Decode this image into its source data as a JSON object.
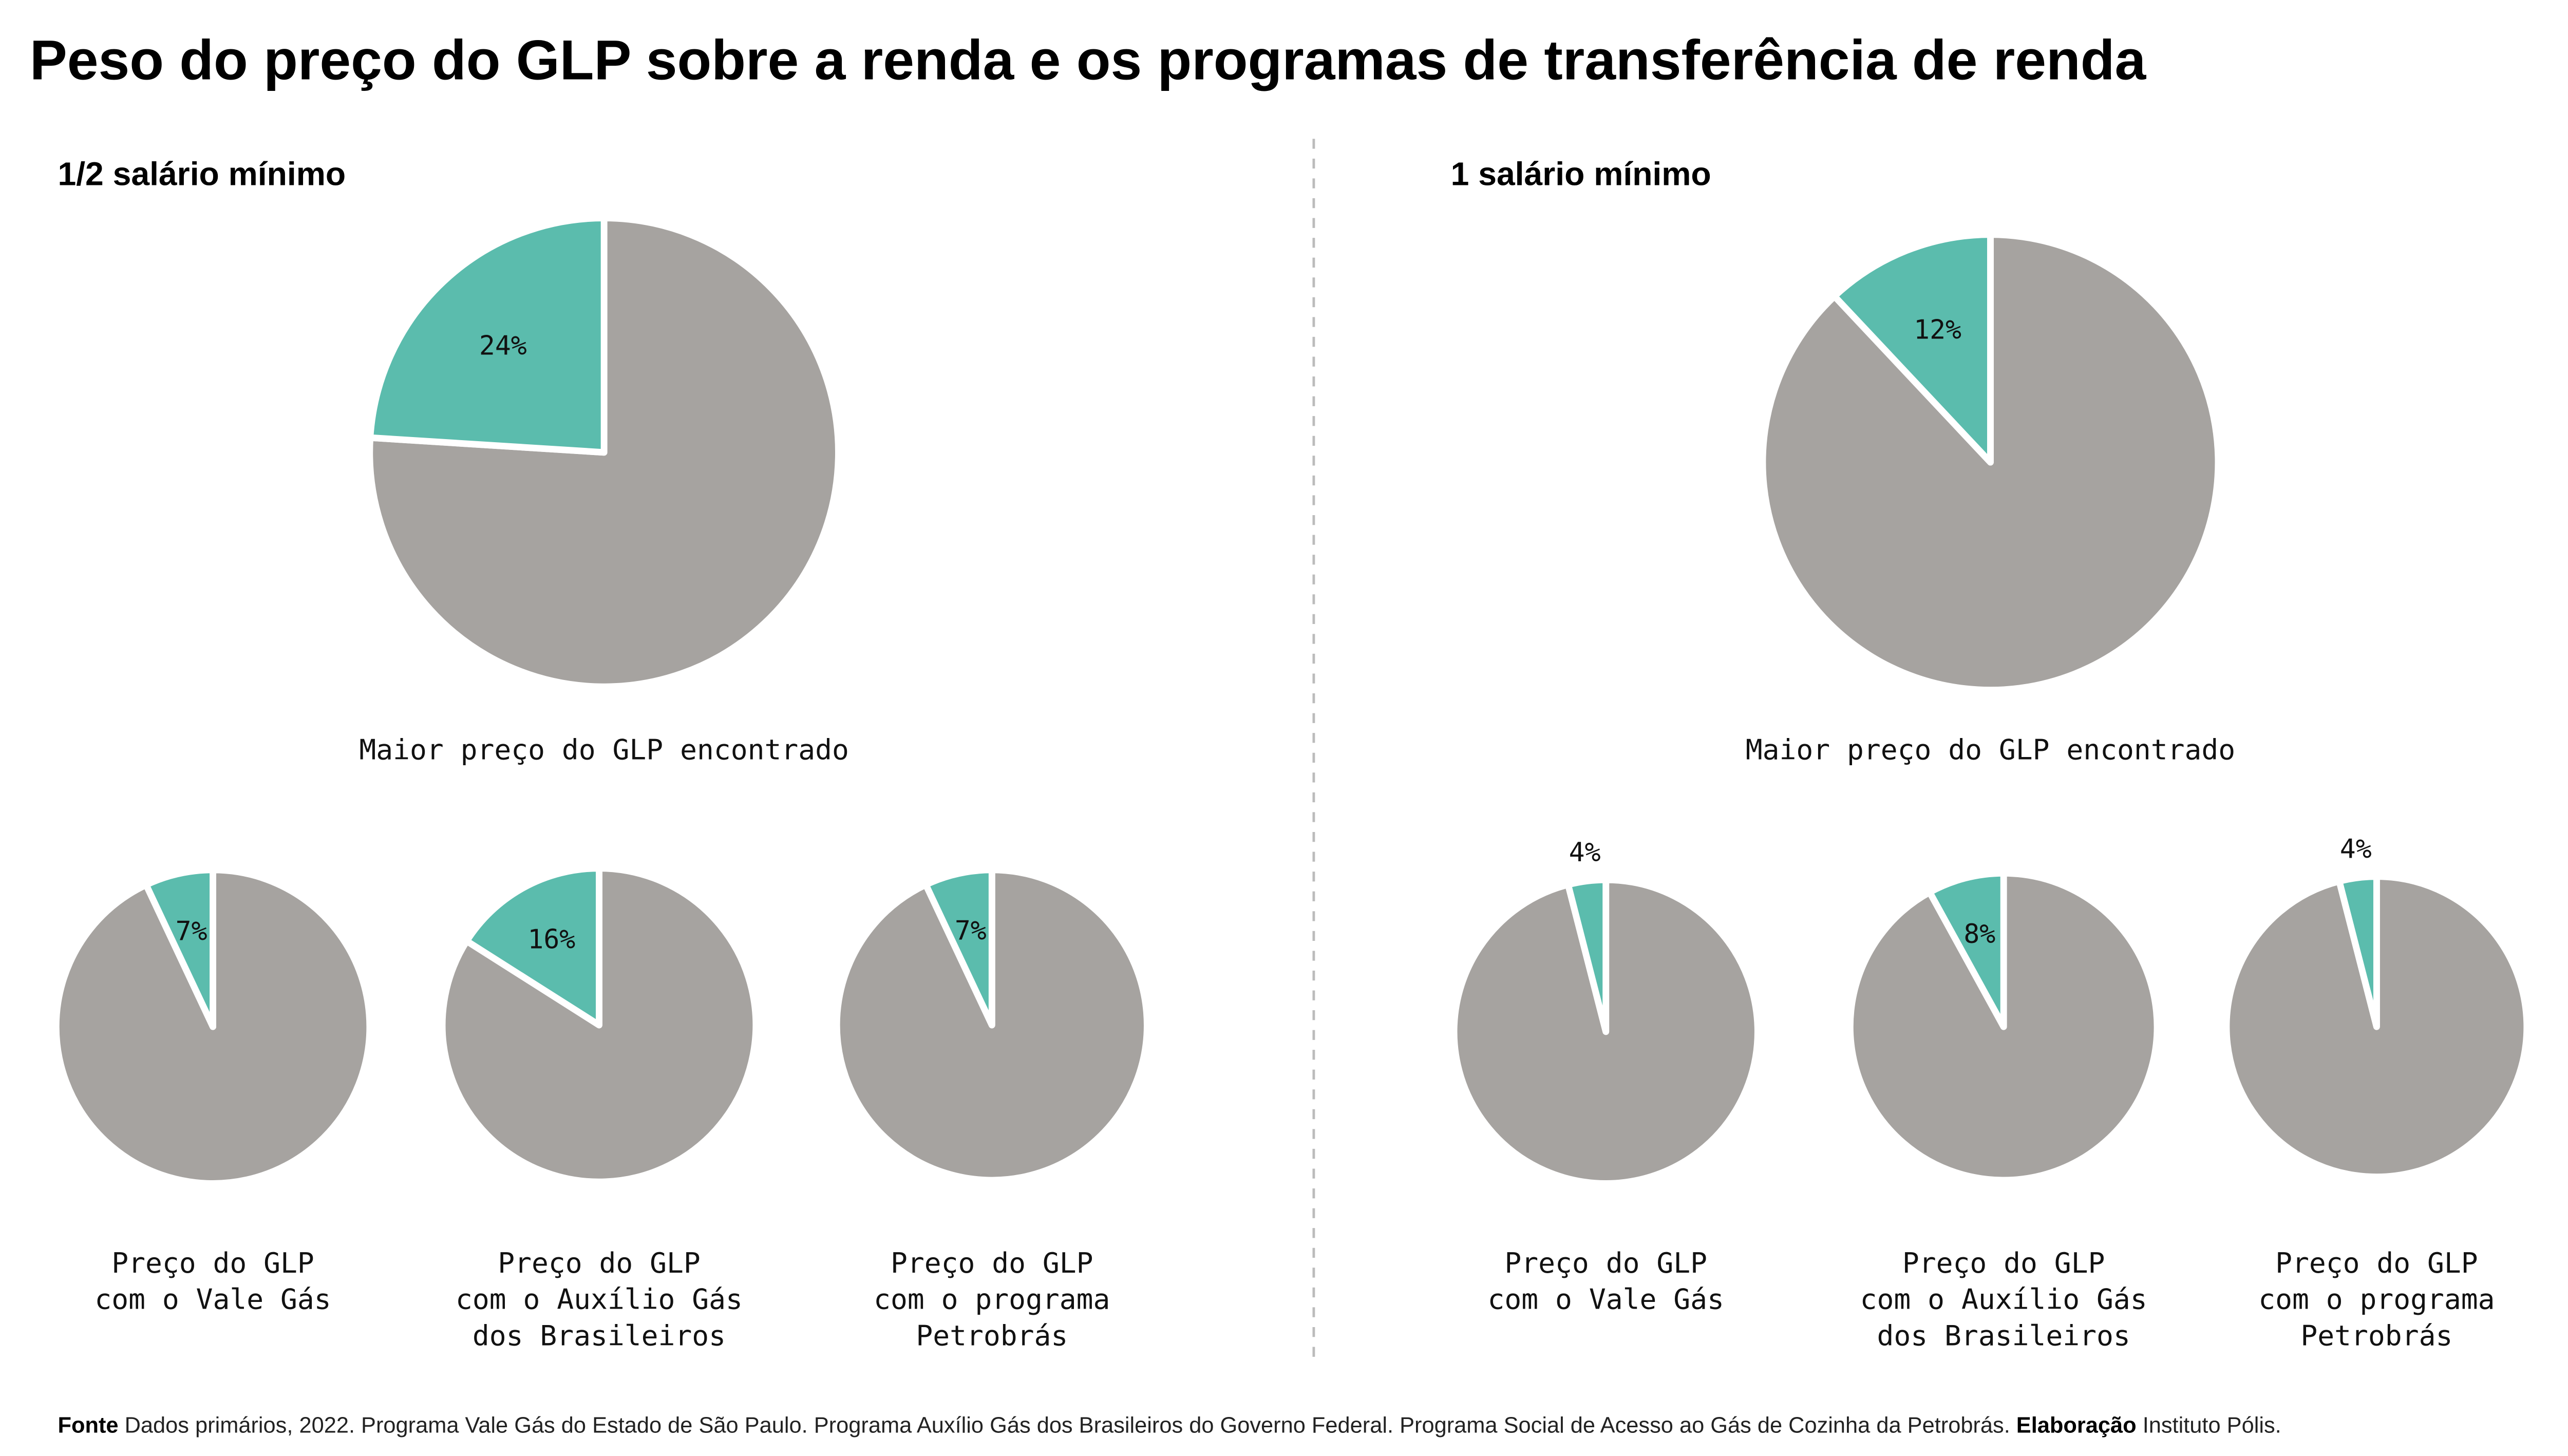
{
  "colors": {
    "highlight": "#5bbcad",
    "rest": "#a6a3a0",
    "separator": "#ffffff",
    "divider": "#bbbbbb"
  },
  "chart_data": {
    "type": "pie",
    "title": "Peso do preço do GLP sobre a renda e os programas de transferência de renda",
    "groups": [
      {
        "name": "1/2 salário mínimo",
        "pies": [
          {
            "caption": [
              "Maior preço do GLP encontrado"
            ],
            "value": 24,
            "label": "24%"
          },
          {
            "caption": [
              "Preço do GLP",
              "com o Vale Gás"
            ],
            "value": 7,
            "label": "7%"
          },
          {
            "caption": [
              "Preço do GLP",
              "com o Auxílio Gás",
              "dos Brasileiros"
            ],
            "value": 16,
            "label": "16%"
          },
          {
            "caption": [
              "Preço do GLP",
              "com o programa",
              "Petrobrás"
            ],
            "value": 7,
            "label": "7%"
          }
        ]
      },
      {
        "name": "1 salário mínimo",
        "pies": [
          {
            "caption": [
              "Maior preço do GLP encontrado"
            ],
            "value": 12,
            "label": "12%"
          },
          {
            "caption": [
              "Preço do GLP",
              "com o Vale Gás"
            ],
            "value": 4,
            "label": "4%"
          },
          {
            "caption": [
              "Preço do GLP",
              "com o Auxílio Gás",
              "dos Brasileiros"
            ],
            "value": 8,
            "label": "8%"
          },
          {
            "caption": [
              "Preço do GLP",
              "com o programa",
              "Petrobrás"
            ],
            "value": 4,
            "label": "4%"
          }
        ]
      }
    ]
  },
  "footer": {
    "source_label": "Fonte",
    "source_text": " Dados primários, 2022. Programa Vale Gás do Estado de São Paulo. Programa Auxílio Gás dos Brasileiros do Governo Federal. Programa Social de Acesso ao Gás de Cozinha da Petrobrás. ",
    "credit_label": "Elaboração",
    "credit_text": " Instituto Pólis."
  }
}
